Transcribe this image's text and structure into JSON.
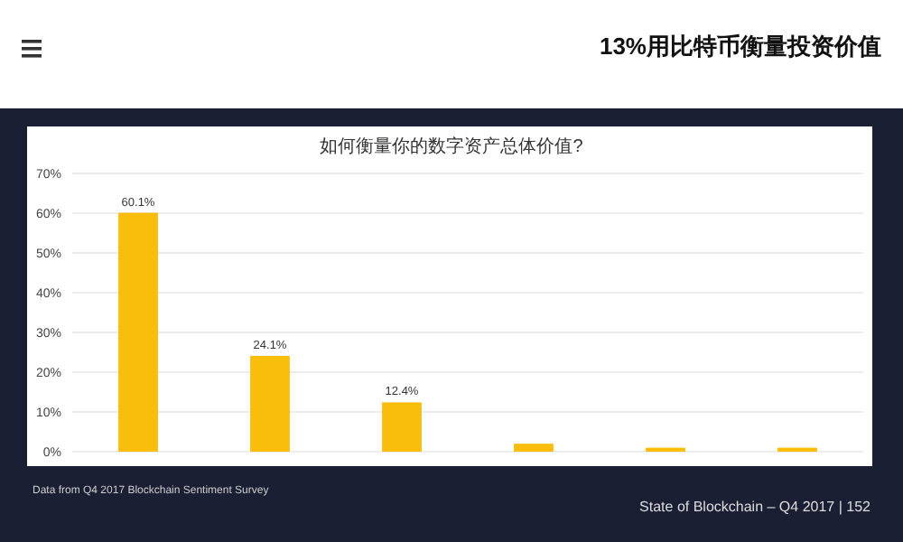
{
  "chart_data": {
    "type": "bar",
    "title": "如何衡量你的数字资产总体价值?",
    "annotations": [
      "13%用比特币衡量投资价值",
      "Data from Q4 2017 Blockchain Sentiment Survey",
      "State of Blockchain – Q4 2017  |  152"
    ],
    "categories": [
      null,
      null,
      null,
      null,
      null,
      null
    ],
    "values": [
      60.1,
      24.1,
      12.4,
      2,
      1,
      1
    ],
    "value_labels": [
      "60.1%",
      "24.1%",
      "12.4%",
      null,
      null,
      null
    ],
    "color": "#f9bd0c",
    "ylim": [
      0,
      70
    ],
    "yticks": [
      {
        "value": 0,
        "label": "0%"
      },
      {
        "value": 10,
        "label": "10%"
      },
      {
        "value": 20,
        "label": "20%"
      },
      {
        "value": 30,
        "label": "30%"
      },
      {
        "value": 40,
        "label": "40%"
      },
      {
        "value": 50,
        "label": "50%"
      },
      {
        "value": 60,
        "label": "60%"
      },
      {
        "value": 70,
        "label": "70%"
      }
    ],
    "grid": "y"
  }
}
